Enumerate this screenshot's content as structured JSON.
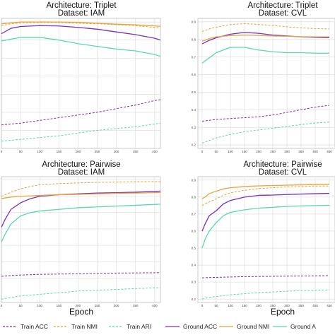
{
  "figure": {
    "xlabel": "Epoch",
    "legend": [
      {
        "key": "train_acc",
        "label": "Train ACC",
        "color": "#7b2fbe",
        "dash": "dashed"
      },
      {
        "key": "train_nmi",
        "label": "Train NMI",
        "color": "#e8a33a",
        "dash": "dashed"
      },
      {
        "key": "train_ari",
        "label": "Train ARI",
        "color": "#5ad6b8",
        "dash": "dashed"
      },
      {
        "key": "ground_acc",
        "label": "Ground ACC",
        "color": "#7b2fbe",
        "dash": "solid"
      },
      {
        "key": "ground_nmi",
        "label": "Ground NMI",
        "color": "#e8a33a",
        "dash": "solid"
      },
      {
        "key": "ground_ari",
        "label": "Ground A",
        "color": "#5ad6b8",
        "dash": "solid"
      }
    ]
  },
  "chart_data": [
    {
      "type": "line",
      "title": "Architecture: Triplet",
      "subtitle": "Dataset: IAM",
      "xlabel": "",
      "xlim": [
        0,
        415
      ],
      "ylim": [
        0.2,
        0.92
      ],
      "xticks": [
        0,
        50,
        100,
        150,
        200,
        250,
        300,
        350,
        400
      ],
      "xtick_labels": [
        "0",
        "50",
        "100",
        "150",
        "200",
        "250",
        "300",
        "350",
        "400"
      ],
      "yticks": [],
      "ytick_labels": [],
      "x": [
        0,
        25,
        50,
        100,
        150,
        200,
        250,
        300,
        350,
        400,
        415
      ],
      "series": [
        {
          "key": "train_acc",
          "values": [
            0.33,
            0.335,
            0.34,
            0.355,
            0.37,
            0.385,
            0.4,
            0.42,
            0.44,
            0.465,
            0.47
          ]
        },
        {
          "key": "train_nmi",
          "values": [
            0.88,
            0.89,
            0.895,
            0.897,
            0.897,
            0.893,
            0.89,
            0.885,
            0.88,
            0.87,
            0.866
          ]
        },
        {
          "key": "train_ari",
          "values": [
            0.24,
            0.245,
            0.25,
            0.26,
            0.27,
            0.285,
            0.3,
            0.31,
            0.32,
            0.335,
            0.34
          ]
        },
        {
          "key": "ground_acc",
          "values": [
            0.835,
            0.865,
            0.875,
            0.88,
            0.878,
            0.87,
            0.86,
            0.845,
            0.83,
            0.81,
            0.8
          ]
        },
        {
          "key": "ground_nmi",
          "values": [
            0.89,
            0.895,
            0.9,
            0.9,
            0.9,
            0.898,
            0.893,
            0.888,
            0.884,
            0.878,
            0.876
          ]
        },
        {
          "key": "ground_ari",
          "values": [
            0.795,
            0.805,
            0.815,
            0.815,
            0.8,
            0.78,
            0.765,
            0.75,
            0.74,
            0.72,
            0.71
          ]
        }
      ]
    },
    {
      "type": "line",
      "title": "Architecture: Triplet",
      "subtitle": "Dataset: CVL",
      "xlabel": "",
      "xlim": [
        -15,
        470
      ],
      "ylim": [
        0.18,
        0.92
      ],
      "xticks": [
        0,
        50,
        100,
        150,
        200,
        250,
        300,
        350,
        400,
        450
      ],
      "xtick_labels": [
        "0",
        "50",
        "100",
        "150",
        "200",
        "250",
        "300",
        "350",
        "400",
        "450"
      ],
      "yticks": [
        0.2,
        0.3,
        0.4,
        0.5,
        0.6,
        0.7,
        0.8,
        0.9
      ],
      "ytick_labels": [
        "0.2",
        "0.3",
        "0.4",
        "0.5",
        "0.6",
        "0.7",
        "0.8",
        "0.9"
      ],
      "x": [
        0,
        25,
        50,
        100,
        150,
        200,
        250,
        300,
        350,
        400,
        450
      ],
      "series": [
        {
          "key": "train_acc",
          "values": [
            0.335,
            0.34,
            0.345,
            0.35,
            0.355,
            0.36,
            0.37,
            0.385,
            0.4,
            0.415,
            0.425
          ]
        },
        {
          "key": "train_nmi",
          "values": [
            0.845,
            0.86,
            0.87,
            0.885,
            0.89,
            0.885,
            0.88,
            0.872,
            0.866,
            0.862,
            0.86
          ]
        },
        {
          "key": "train_ari",
          "values": [
            0.21,
            0.225,
            0.24,
            0.26,
            0.275,
            0.285,
            0.295,
            0.305,
            0.315,
            0.325,
            0.33
          ]
        },
        {
          "key": "ground_acc",
          "values": [
            0.775,
            0.795,
            0.81,
            0.83,
            0.84,
            0.835,
            0.825,
            0.82,
            0.815,
            0.812,
            0.81
          ]
        },
        {
          "key": "ground_nmi",
          "values": [
            0.79,
            0.805,
            0.815,
            0.822,
            0.825,
            0.823,
            0.82,
            0.818,
            0.816,
            0.815,
            0.815
          ]
        },
        {
          "key": "ground_ari",
          "values": [
            0.665,
            0.695,
            0.725,
            0.755,
            0.755,
            0.74,
            0.73,
            0.725,
            0.725,
            0.722,
            0.722
          ]
        }
      ]
    },
    {
      "type": "line",
      "title": "Architecture: Pairwise",
      "subtitle": "Dataset: IAM",
      "xlabel": "Epoch",
      "xlim": [
        0,
        415
      ],
      "ylim": [
        0.15,
        0.92
      ],
      "xticks": [
        0,
        50,
        100,
        150,
        200,
        250,
        300,
        350,
        400
      ],
      "xtick_labels": [
        "0",
        "50",
        "100",
        "150",
        "200",
        "250",
        "300",
        "350",
        "400"
      ],
      "yticks": [],
      "ytick_labels": [],
      "x": [
        0,
        10,
        25,
        50,
        75,
        100,
        150,
        200,
        250,
        300,
        350,
        400,
        415
      ],
      "series": [
        {
          "key": "train_acc",
          "values": [
            0.31,
            0.312,
            0.315,
            0.318,
            0.32,
            0.322,
            0.324,
            0.326,
            0.328,
            0.33,
            0.331,
            0.332,
            0.333
          ]
        },
        {
          "key": "train_nmi",
          "values": [
            0.8,
            0.81,
            0.825,
            0.845,
            0.86,
            0.87,
            0.878,
            0.882,
            0.885,
            0.887,
            0.889,
            0.89,
            0.89
          ]
        },
        {
          "key": "train_ari",
          "values": [
            0.17,
            0.175,
            0.18,
            0.19,
            0.195,
            0.2,
            0.21,
            0.22,
            0.225,
            0.23,
            0.235,
            0.24,
            0.24
          ]
        },
        {
          "key": "ground_acc",
          "values": [
            0.61,
            0.66,
            0.72,
            0.76,
            0.785,
            0.8,
            0.81,
            0.815,
            0.82,
            0.822,
            0.825,
            0.83,
            0.832
          ]
        },
        {
          "key": "ground_nmi",
          "values": [
            0.785,
            0.79,
            0.795,
            0.8,
            0.802,
            0.805,
            0.81,
            0.812,
            0.815,
            0.818,
            0.82,
            0.822,
            0.823
          ]
        },
        {
          "key": "ground_ari",
          "values": [
            0.52,
            0.57,
            0.63,
            0.68,
            0.7,
            0.71,
            0.72,
            0.73,
            0.735,
            0.74,
            0.745,
            0.75,
            0.752
          ]
        }
      ]
    },
    {
      "type": "line",
      "title": "Architecture: Pairwise",
      "subtitle": "Dataset: CVL",
      "xlabel": "Epoch",
      "xlim": [
        -15,
        470
      ],
      "ylim": [
        0.18,
        0.92
      ],
      "xticks": [
        0,
        50,
        100,
        150,
        200,
        250,
        300,
        350,
        400,
        450
      ],
      "xtick_labels": [
        "0",
        "50",
        "100",
        "150",
        "200",
        "250",
        "300",
        "350",
        "400",
        "450"
      ],
      "yticks": [
        0.2,
        0.3,
        0.4,
        0.5,
        0.6,
        0.7,
        0.8,
        0.9
      ],
      "ytick_labels": [
        "0.2",
        "0.3",
        "0.4",
        "0.5",
        "0.6",
        "0.7",
        "0.8",
        "0.9"
      ],
      "x": [
        0,
        10,
        25,
        50,
        75,
        100,
        150,
        200,
        250,
        300,
        350,
        400,
        450
      ],
      "series": [
        {
          "key": "train_acc",
          "values": [
            0.325,
            0.326,
            0.327,
            0.328,
            0.329,
            0.33,
            0.332,
            0.333,
            0.334,
            0.335,
            0.336,
            0.337,
            0.338
          ]
        },
        {
          "key": "train_nmi",
          "values": [
            0.75,
            0.76,
            0.77,
            0.79,
            0.81,
            0.825,
            0.84,
            0.85,
            0.855,
            0.86,
            0.862,
            0.865,
            0.865
          ]
        },
        {
          "key": "train_ari",
          "values": [
            0.2,
            0.205,
            0.21,
            0.215,
            0.22,
            0.225,
            0.232,
            0.238,
            0.242,
            0.246,
            0.25,
            0.252,
            0.254
          ]
        },
        {
          "key": "ground_acc",
          "values": [
            0.6,
            0.64,
            0.69,
            0.72,
            0.76,
            0.78,
            0.8,
            0.81,
            0.812,
            0.815,
            0.818,
            0.82,
            0.822
          ]
        },
        {
          "key": "ground_nmi",
          "values": [
            0.79,
            0.8,
            0.82,
            0.835,
            0.848,
            0.855,
            0.862,
            0.866,
            0.868,
            0.87,
            0.872,
            0.874,
            0.875
          ]
        },
        {
          "key": "ground_ari",
          "values": [
            0.5,
            0.55,
            0.6,
            0.65,
            0.69,
            0.71,
            0.725,
            0.735,
            0.74,
            0.745,
            0.748,
            0.75,
            0.752
          ]
        }
      ]
    }
  ]
}
